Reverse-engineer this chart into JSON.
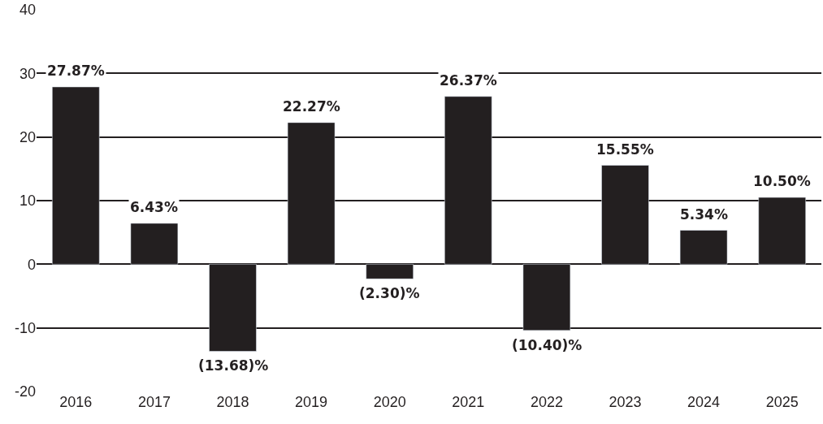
{
  "chart_data": {
    "type": "bar",
    "categories": [
      "2016",
      "2017",
      "2018",
      "2019",
      "2020",
      "2021",
      "2022",
      "2023",
      "2024",
      "2025"
    ],
    "values": [
      27.87,
      6.43,
      -13.68,
      22.27,
      -2.3,
      26.37,
      -10.4,
      15.55,
      5.34,
      10.5
    ],
    "value_labels": [
      "27.87%",
      "6.43%",
      "(13.68)%",
      "22.27%",
      "(2.30)%",
      "26.37%",
      "(10.40)%",
      "15.55%",
      "5.34%",
      "10.50%"
    ],
    "color": "#231f20",
    "ylim": [
      -20,
      40
    ],
    "yticks": [
      -20,
      -10,
      0,
      10,
      20,
      30,
      40
    ],
    "grid": "y",
    "legend": false
  }
}
